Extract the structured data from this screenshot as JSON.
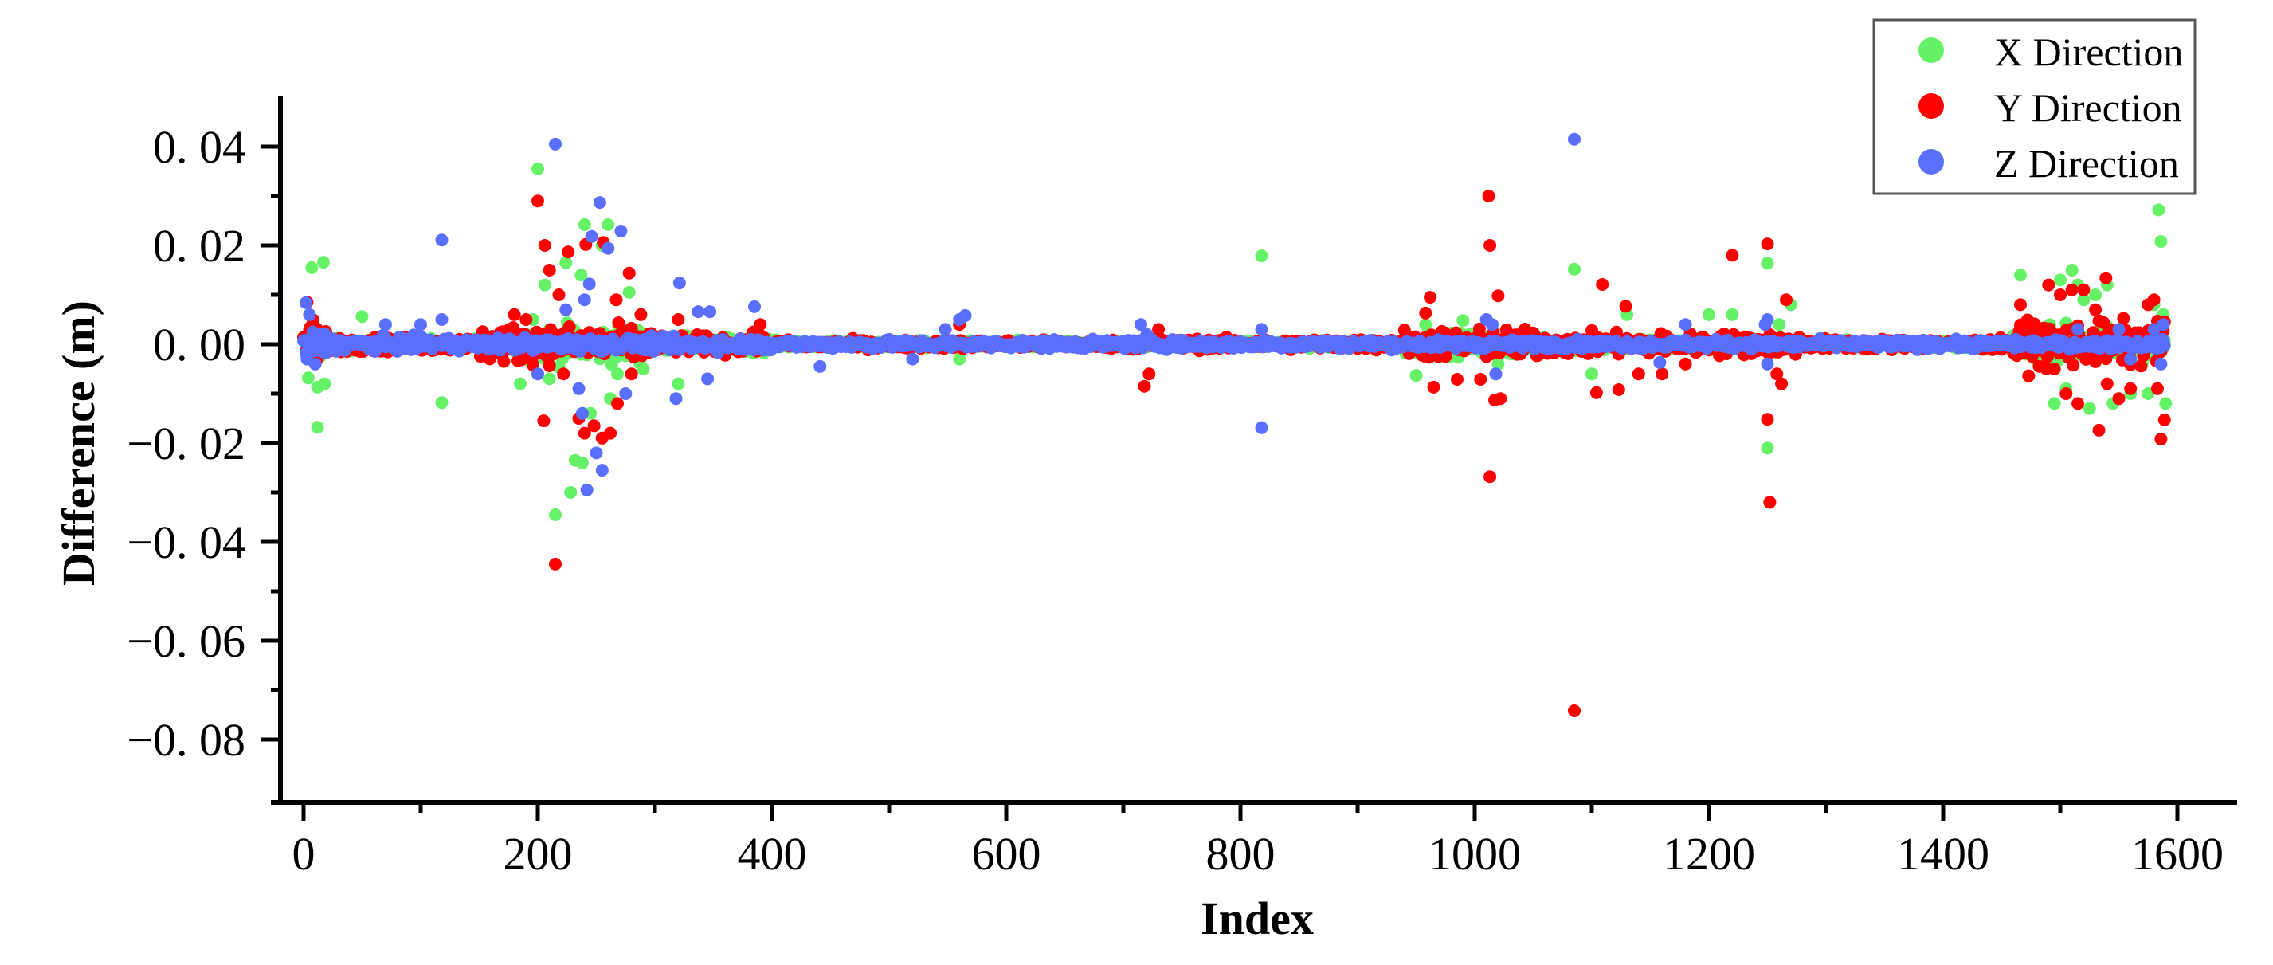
{
  "chart_data": {
    "type": "scatter",
    "title": "",
    "xlabel": "Index",
    "ylabel": "Difference (m)",
    "xlim": [
      -20,
      1640
    ],
    "ylim": [
      -0.09,
      0.05
    ],
    "x_ticks": [
      0,
      200,
      400,
      600,
      800,
      1000,
      1200,
      1400,
      1600
    ],
    "x_tick_labels": [
      "0",
      "200",
      "400",
      "600",
      "800",
      "1000",
      "1200",
      "1400",
      "1600"
    ],
    "y_ticks": [
      0.04,
      0.02,
      0.0,
      -0.02,
      -0.04,
      -0.06,
      -0.08
    ],
    "y_tick_labels": [
      "0. 04",
      "0. 02",
      "0. 00",
      "−0. 02",
      "−0. 04",
      "−0. 06",
      "−0. 08"
    ],
    "grid": false,
    "legend_position": "upper right",
    "n_points_per_series": 1590,
    "series": [
      {
        "name": "X Direction",
        "color": "#66F266",
        "band": [
          {
            "from": 0,
            "to": 20,
            "amp": 0.004
          },
          {
            "from": 20,
            "to": 180,
            "amp": 0.0015
          },
          {
            "from": 180,
            "to": 300,
            "amp": 0.005
          },
          {
            "from": 300,
            "to": 400,
            "amp": 0.002
          },
          {
            "from": 400,
            "to": 940,
            "amp": 0.001
          },
          {
            "from": 940,
            "to": 1060,
            "amp": 0.003
          },
          {
            "from": 1060,
            "to": 1270,
            "amp": 0.002
          },
          {
            "from": 1270,
            "to": 1460,
            "amp": 0.001
          },
          {
            "from": 1460,
            "to": 1590,
            "amp": 0.005
          }
        ],
        "outliers": [
          [
            7,
            0.0155
          ],
          [
            17,
            0.0166
          ],
          [
            12,
            -0.0087
          ],
          [
            4,
            -0.0068
          ],
          [
            18,
            -0.008
          ],
          [
            12,
            -0.0168
          ],
          [
            50,
            0.0056
          ],
          [
            118,
            -0.0118
          ],
          [
            200,
            0.0355
          ],
          [
            206,
            0.012
          ],
          [
            224,
            0.0165
          ],
          [
            237,
            0.014
          ],
          [
            240,
            0.0242
          ],
          [
            260,
            0.0242
          ],
          [
            215,
            -0.0345
          ],
          [
            228,
            -0.03
          ],
          [
            232,
            -0.0235
          ],
          [
            238,
            -0.024
          ],
          [
            245,
            -0.014
          ],
          [
            255,
            0.02
          ],
          [
            262,
            -0.011
          ],
          [
            268,
            -0.006
          ],
          [
            278,
            0.0105
          ],
          [
            290,
            -0.005
          ],
          [
            320,
            -0.008
          ],
          [
            210,
            -0.007
          ],
          [
            196,
            0.005
          ],
          [
            185,
            -0.008
          ],
          [
            560,
            -0.003
          ],
          [
            818,
            0.0179
          ],
          [
            950,
            -0.0063
          ],
          [
            958,
            0.004
          ],
          [
            990,
            0.0048
          ],
          [
            1010,
            0.005
          ],
          [
            1020,
            -0.004
          ],
          [
            1085,
            0.0152
          ],
          [
            1100,
            -0.006
          ],
          [
            1130,
            0.006
          ],
          [
            1200,
            0.006
          ],
          [
            1220,
            0.006
          ],
          [
            1250,
            0.0164
          ],
          [
            1250,
            -0.021
          ],
          [
            1260,
            0.004
          ],
          [
            1270,
            0.008
          ],
          [
            1466,
            0.014
          ],
          [
            1500,
            0.013
          ],
          [
            1510,
            0.015
          ],
          [
            1515,
            0.012
          ],
          [
            1520,
            0.009
          ],
          [
            1530,
            0.01
          ],
          [
            1540,
            0.012
          ],
          [
            1495,
            -0.012
          ],
          [
            1505,
            -0.009
          ],
          [
            1525,
            -0.013
          ],
          [
            1545,
            -0.012
          ],
          [
            1560,
            -0.01
          ],
          [
            1575,
            -0.01
          ],
          [
            1580,
            0.008
          ],
          [
            1584,
            0.0272
          ],
          [
            1586,
            0.0208
          ],
          [
            1588,
            0.006
          ],
          [
            1590,
            -0.012
          ]
        ]
      },
      {
        "name": "Y Direction",
        "color": "#FF0000",
        "band": [
          {
            "from": 0,
            "to": 20,
            "amp": 0.005
          },
          {
            "from": 20,
            "to": 150,
            "amp": 0.002
          },
          {
            "from": 150,
            "to": 300,
            "amp": 0.005
          },
          {
            "from": 300,
            "to": 400,
            "amp": 0.0025
          },
          {
            "from": 400,
            "to": 700,
            "amp": 0.0012
          },
          {
            "from": 700,
            "to": 940,
            "amp": 0.0015
          },
          {
            "from": 940,
            "to": 1060,
            "amp": 0.004
          },
          {
            "from": 1060,
            "to": 1280,
            "amp": 0.003
          },
          {
            "from": 1280,
            "to": 1460,
            "amp": 0.0015
          },
          {
            "from": 1460,
            "to": 1590,
            "amp": 0.006
          }
        ],
        "outliers": [
          [
            3,
            0.0085
          ],
          [
            8,
            0.005
          ],
          [
            180,
            0.006
          ],
          [
            190,
            0.005
          ],
          [
            200,
            0.029
          ],
          [
            206,
            0.02
          ],
          [
            210,
            0.015
          ],
          [
            218,
            0.01
          ],
          [
            226,
            0.0187
          ],
          [
            241,
            0.0202
          ],
          [
            256,
            0.0206
          ],
          [
            267,
            0.009
          ],
          [
            278,
            0.0144
          ],
          [
            288,
            0.006
          ],
          [
            205,
            -0.0155
          ],
          [
            215,
            -0.0445
          ],
          [
            222,
            -0.006
          ],
          [
            235,
            -0.015
          ],
          [
            240,
            -0.018
          ],
          [
            248,
            -0.0165
          ],
          [
            255,
            -0.019
          ],
          [
            262,
            -0.018
          ],
          [
            268,
            -0.012
          ],
          [
            280,
            -0.006
          ],
          [
            320,
            0.005
          ],
          [
            390,
            0.004
          ],
          [
            560,
            0.004
          ],
          [
            718,
            -0.0085
          ],
          [
            722,
            -0.006
          ],
          [
            730,
            0.003
          ],
          [
            958,
            0.0063
          ],
          [
            962,
            0.0095
          ],
          [
            965,
            -0.0087
          ],
          [
            985,
            -0.0071
          ],
          [
            1005,
            -0.0071
          ],
          [
            1012,
            0.03
          ],
          [
            1013,
            0.02
          ],
          [
            1017,
            -0.0113
          ],
          [
            1013,
            -0.0268
          ],
          [
            1020,
            0.0098
          ],
          [
            1022,
            -0.011
          ],
          [
            1085,
            -0.0742
          ],
          [
            1104,
            -0.0098
          ],
          [
            1109,
            0.0121
          ],
          [
            1123,
            -0.0092
          ],
          [
            1129,
            0.0077
          ],
          [
            1140,
            -0.006
          ],
          [
            1160,
            -0.006
          ],
          [
            1180,
            -0.004
          ],
          [
            1220,
            0.018
          ],
          [
            1250,
            0.0203
          ],
          [
            1250,
            -0.0152
          ],
          [
            1252,
            -0.032
          ],
          [
            1258,
            -0.006
          ],
          [
            1262,
            -0.008
          ],
          [
            1266,
            0.009
          ],
          [
            1466,
            0.008
          ],
          [
            1490,
            0.012
          ],
          [
            1500,
            0.01
          ],
          [
            1510,
            0.011
          ],
          [
            1520,
            0.011
          ],
          [
            1530,
            0.007
          ],
          [
            1539,
            0.0134
          ],
          [
            1495,
            -0.005
          ],
          [
            1505,
            -0.01
          ],
          [
            1515,
            -0.012
          ],
          [
            1533,
            -0.0174
          ],
          [
            1540,
            -0.008
          ],
          [
            1550,
            -0.011
          ],
          [
            1560,
            -0.009
          ],
          [
            1575,
            0.008
          ],
          [
            1580,
            0.009
          ],
          [
            1583,
            -0.009
          ],
          [
            1586,
            -0.0192
          ],
          [
            1589,
            -0.0153
          ]
        ]
      },
      {
        "name": "Z Direction",
        "color": "#5A6EFF",
        "band": [
          {
            "from": 0,
            "to": 20,
            "amp": 0.004
          },
          {
            "from": 20,
            "to": 400,
            "amp": 0.0018
          },
          {
            "from": 400,
            "to": 1590,
            "amp": 0.0012
          }
        ],
        "outliers": [
          [
            2,
            0.0084
          ],
          [
            5,
            0.006
          ],
          [
            3,
            -0.003
          ],
          [
            10,
            -0.004
          ],
          [
            70,
            0.004
          ],
          [
            100,
            0.004
          ],
          [
            118,
            0.0211
          ],
          [
            118,
            0.005
          ],
          [
            200,
            -0.006
          ],
          [
            215,
            0.0405
          ],
          [
            224,
            0.007
          ],
          [
            235,
            -0.009
          ],
          [
            240,
            0.009
          ],
          [
            244,
            0.0122
          ],
          [
            246,
            0.0218
          ],
          [
            253,
            0.0287
          ],
          [
            260,
            0.0194
          ],
          [
            271,
            0.0229
          ],
          [
            238,
            -0.014
          ],
          [
            242,
            -0.0295
          ],
          [
            250,
            -0.022
          ],
          [
            255,
            -0.0255
          ],
          [
            275,
            -0.01
          ],
          [
            321,
            0.0124
          ],
          [
            318,
            -0.011
          ],
          [
            337,
            0.0066
          ],
          [
            347,
            0.0066
          ],
          [
            345,
            -0.007
          ],
          [
            385,
            0.0076
          ],
          [
            441,
            -0.0045
          ],
          [
            520,
            -0.003
          ],
          [
            548,
            0.003
          ],
          [
            560,
            0.005
          ],
          [
            565,
            0.0058
          ],
          [
            715,
            0.004
          ],
          [
            720,
            0.002
          ],
          [
            818,
            -0.0169
          ],
          [
            818,
            0.003
          ],
          [
            1010,
            0.005
          ],
          [
            1015,
            0.004
          ],
          [
            1018,
            -0.006
          ],
          [
            1085,
            0.0415
          ],
          [
            1158,
            -0.0037
          ],
          [
            1180,
            0.004
          ],
          [
            1248,
            0.004
          ],
          [
            1250,
            -0.004
          ],
          [
            1250,
            0.005
          ],
          [
            1515,
            0.003
          ],
          [
            1550,
            0.003
          ],
          [
            1560,
            -0.003
          ],
          [
            1580,
            0.003
          ],
          [
            1586,
            -0.004
          ],
          [
            1588,
            0.004
          ]
        ]
      }
    ]
  },
  "axes": {
    "xlabel": "Index",
    "ylabel": "Difference (m)"
  },
  "legend": {
    "items": [
      {
        "label": "X Direction",
        "color": "#66F266"
      },
      {
        "label": "Y Direction",
        "color": "#FF0000"
      },
      {
        "label": "Z Direction",
        "color": "#5A6EFF"
      }
    ]
  }
}
